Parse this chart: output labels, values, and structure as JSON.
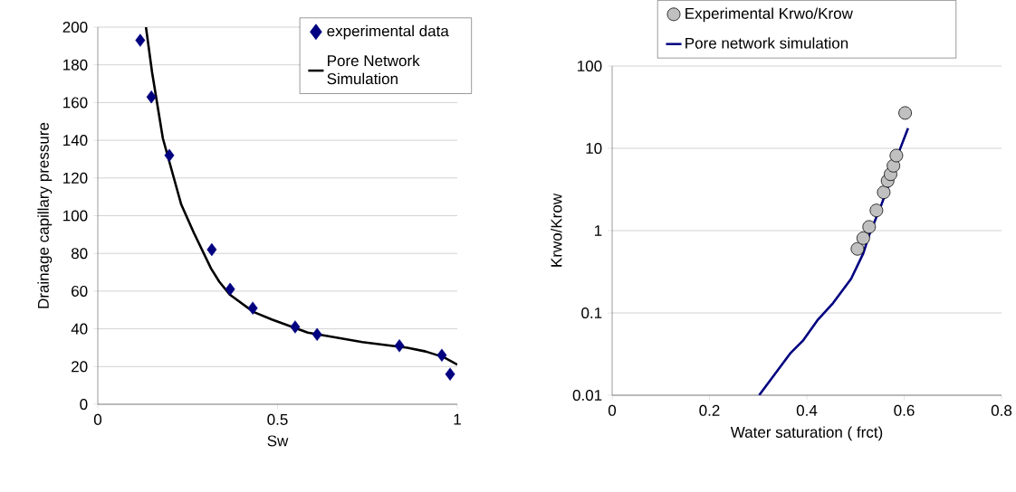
{
  "chart_data": [
    {
      "type": "scatter",
      "xlabel": "Sw",
      "ylabel": "Drainage capillary pressure",
      "xlim": [
        0,
        1
      ],
      "ylim": [
        0,
        200
      ],
      "xticks": [
        0,
        0.5,
        1
      ],
      "yticks": [
        0,
        20,
        40,
        60,
        80,
        100,
        120,
        140,
        160,
        180,
        200
      ],
      "grid": "y",
      "legend": "top right",
      "series": [
        {
          "name": "experimental data",
          "marker": "diamond",
          "color": "#000080",
          "x": [
            0.118,
            0.149,
            0.199,
            0.317,
            0.368,
            0.431,
            0.549,
            0.61,
            0.839,
            0.957,
            0.98
          ],
          "values": [
            193,
            163,
            132,
            82,
            61,
            51,
            41,
            37,
            31,
            26,
            16
          ]
        },
        {
          "name": "Pore Network Simulation",
          "type": "line",
          "marker": "none",
          "color": "#000000",
          "x": [
            0.134,
            0.151,
            0.181,
            0.232,
            0.267,
            0.315,
            0.338,
            0.368,
            0.433,
            0.484,
            0.584,
            0.736,
            0.861,
            0.912,
            0.962,
            1.0
          ],
          "values": [
            200,
            176,
            141,
            106,
            91,
            72,
            65,
            58,
            49,
            45,
            38,
            33,
            30,
            28,
            25,
            21
          ]
        }
      ]
    },
    {
      "type": "scatter",
      "xlabel": "Water saturation ( frct)",
      "ylabel": "Krwo/Krow",
      "xlim": [
        0,
        0.8
      ],
      "ylim": [
        0.01,
        100
      ],
      "xticks": [
        0,
        0.2,
        0.4,
        0.6,
        0.8
      ],
      "yticks": [
        0.01,
        0.1,
        1,
        10,
        100
      ],
      "log": "y",
      "grid": "y",
      "legend": "top",
      "series": [
        {
          "name": "Experimental Krwo/Krow",
          "marker": "circle",
          "color": "#c0c0c0",
          "x": [
            0.504,
            0.516,
            0.528,
            0.543,
            0.558,
            0.566,
            0.572,
            0.578,
            0.584,
            0.602
          ],
          "values": [
            0.6,
            0.81,
            1.11,
            1.76,
            2.92,
            4.02,
            4.84,
            6.14,
            8.17,
            26.9
          ]
        },
        {
          "name": "Pore network simulation",
          "type": "line",
          "marker": "none",
          "color": "#000080",
          "x": [
            0.302,
            0.33,
            0.367,
            0.392,
            0.423,
            0.454,
            0.491,
            0.516,
            0.528,
            0.553,
            0.578,
            0.59,
            0.608
          ],
          "values": [
            0.01,
            0.0167,
            0.0328,
            0.046,
            0.083,
            0.132,
            0.26,
            0.53,
            0.88,
            2.05,
            5.18,
            9.3,
            17.6
          ]
        }
      ]
    }
  ]
}
